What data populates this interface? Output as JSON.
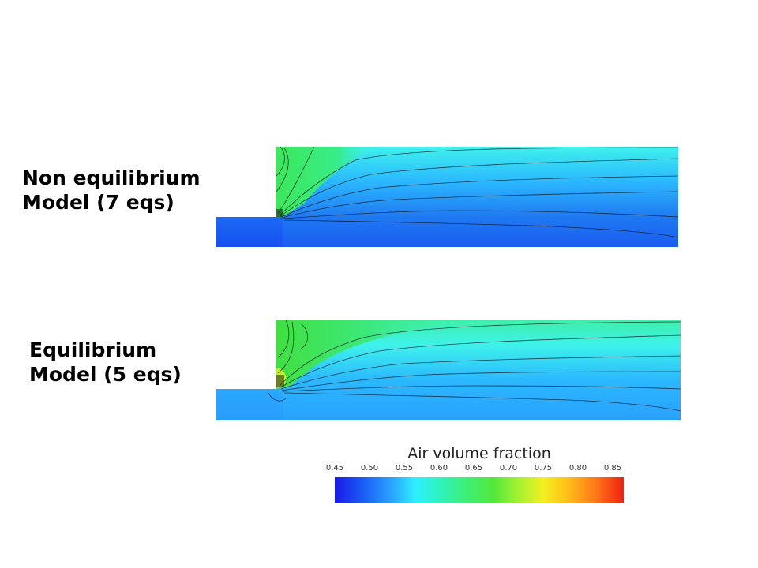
{
  "labels": {
    "top_line1": "Non equilibrium",
    "top_line2": "Model (7 eqs)",
    "bottom_line1": "Equilibrium",
    "bottom_line2": "Model (5 eqs)"
  },
  "colorbar": {
    "title": "Air volume fraction",
    "ticks": [
      "0.45",
      "0.50",
      "0.55",
      "0.60",
      "0.65",
      "0.70",
      "0.75",
      "0.80",
      "0.85"
    ],
    "colors": [
      "#1a1ae6",
      "#2aa6ff",
      "#2ef0ff",
      "#3cf07a",
      "#a8f230",
      "#f0f020",
      "#ff7a18",
      "#f02010"
    ]
  }
}
